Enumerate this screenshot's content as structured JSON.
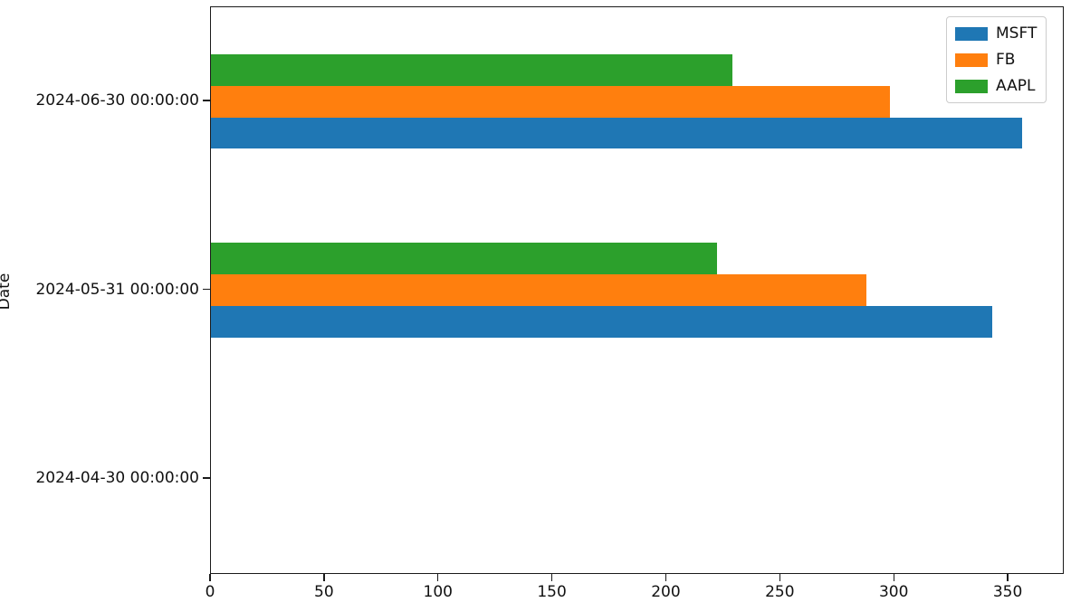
{
  "figure": {
    "background": "#ffffff",
    "spine_color": "#1a1a1a"
  },
  "chart_data": {
    "type": "bar",
    "orientation": "horizontal",
    "title": "",
    "xlabel": "",
    "ylabel": "Date",
    "categories": [
      "2024-06-30 00:00:00",
      "2024-05-31 00:00:00",
      "2024-04-30 00:00:00"
    ],
    "series": [
      {
        "name": "MSFT",
        "color": "#1f77b4",
        "values": [
          356,
          343,
          0
        ]
      },
      {
        "name": "FB",
        "color": "#ff7f0e",
        "values": [
          298,
          287.5,
          0
        ]
      },
      {
        "name": "AAPL",
        "color": "#2ca02c",
        "values": [
          229,
          222,
          0
        ]
      }
    ],
    "x_ticks": [
      0,
      50,
      100,
      150,
      200,
      250,
      300,
      350
    ],
    "xlim": [
      0,
      373.8
    ],
    "ylim": [
      -0.5,
      2.5
    ],
    "group_width_fraction": 0.5,
    "grid": false,
    "legend_position": "upper right"
  }
}
